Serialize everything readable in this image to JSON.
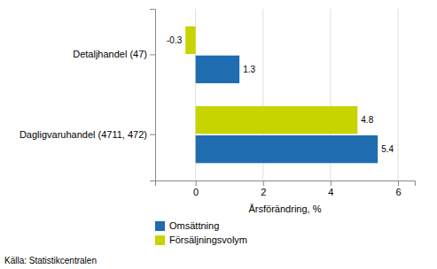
{
  "chart_data": {
    "type": "bar",
    "orientation": "horizontal",
    "categories": [
      "Dagligvaruhandel (4711, 472)",
      "Detaljhandel (47)"
    ],
    "series": [
      {
        "name": "Omsättning",
        "color": "#1F6CB0",
        "values": [
          5.4,
          1.3
        ]
      },
      {
        "name": "Försäljningsvolym",
        "color": "#C8D400",
        "values": [
          4.8,
          -0.3
        ]
      }
    ],
    "xlabel": "Årsförändring, %",
    "xlim": [
      -1.2,
      6.5
    ],
    "xticks": [
      0,
      2,
      4,
      6
    ],
    "grid": true,
    "data_labels": true,
    "legend": "bottom",
    "annotations": [
      "Källa: Statistikcentralen"
    ]
  }
}
